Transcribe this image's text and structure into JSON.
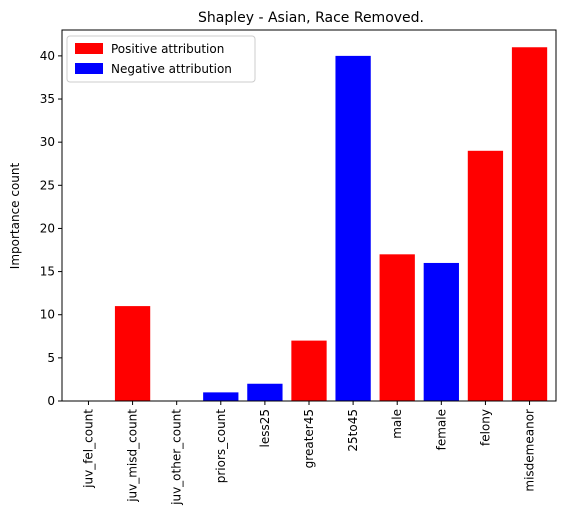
{
  "chart_data": {
    "type": "bar",
    "title": "Shapley - Asian, Race Removed.",
    "xlabel": "",
    "ylabel": "Importance count",
    "ylim": [
      0,
      43
    ],
    "yticks": [
      0,
      5,
      10,
      15,
      20,
      25,
      30,
      35,
      40
    ],
    "categories": [
      "juv_fel_count",
      "juv_misd_count",
      "juv_other_count",
      "priors_count",
      "less25",
      "greater45",
      "25to45",
      "male",
      "female",
      "felony",
      "misdemeanor"
    ],
    "values": [
      0,
      11,
      0,
      1,
      2,
      7,
      40,
      17,
      16,
      29,
      41
    ],
    "attribution": [
      "positive",
      "positive",
      "negative",
      "negative",
      "negative",
      "positive",
      "negative",
      "positive",
      "negative",
      "positive",
      "positive"
    ],
    "legend": {
      "placement": "top-left",
      "entries": [
        {
          "key": "positive",
          "label": "Positive attribution",
          "color": "#ff0000"
        },
        {
          "key": "negative",
          "label": "Negative attribution",
          "color": "#0000ff"
        }
      ]
    },
    "grid": false
  }
}
